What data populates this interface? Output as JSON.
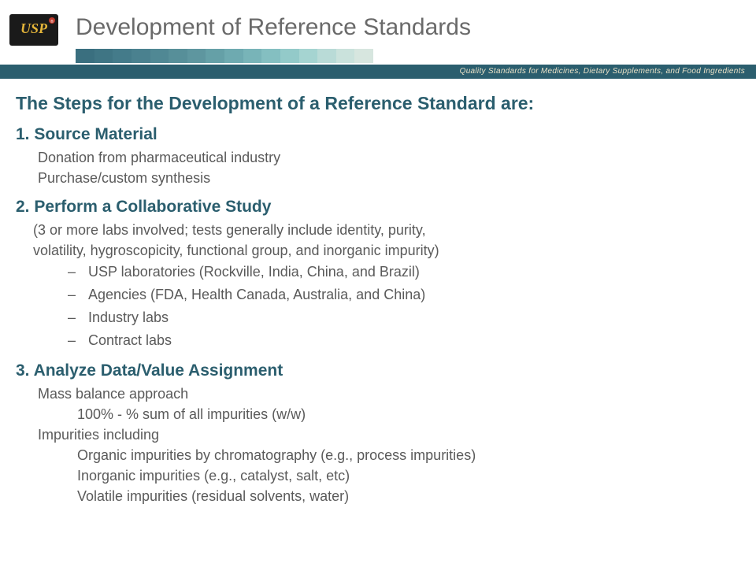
{
  "title": "Development of Reference Standards",
  "tagline": "Quality Standards for Medicines, Dietary Supplements, and Food Ingredients",
  "intro": "The Steps for the Development of a Reference Standard are:",
  "stripe_colors": [
    "#3a6f7f",
    "#3f7584",
    "#447b8a",
    "#4a818f",
    "#508894",
    "#578f99",
    "#5e969f",
    "#65a0a7",
    "#6eaab0",
    "#78b4b8",
    "#84bfc1",
    "#93cac9",
    "#a5d4d1",
    "#b9dbd7",
    "#cae2dc",
    "#d7e6df"
  ],
  "steps": {
    "s1": {
      "head": "1.  Source Material",
      "lines": [
        "Donation from pharmaceutical industry",
        "Purchase/custom synthesis"
      ]
    },
    "s2": {
      "head": "2.  Perform a Collaborative Study",
      "paren1": "(3 or more labs involved; tests generally include identity, purity,",
      "paren2": " volatility, hygroscopicity, functional group, and inorganic impurity)",
      "dashes": [
        "USP laboratories (Rockville, India, China, and Brazil)",
        "Agencies (FDA, Health Canada, Australia, and China)",
        "Industry labs",
        "Contract labs"
      ]
    },
    "s3": {
      "head": "3.  Analyze Data/Value Assignment",
      "lines": [
        "Mass balance approach"
      ],
      "sub2a": "100% - % sum of all impurities (w/w)",
      "lines2": [
        "Impurities including"
      ],
      "sub2list": [
        "Organic impurities by chromatography (e.g., process impurities)",
        "Inorganic impurities (e.g., catalyst, salt, etc)",
        "Volatile impurities (residual solvents, water)"
      ]
    }
  }
}
